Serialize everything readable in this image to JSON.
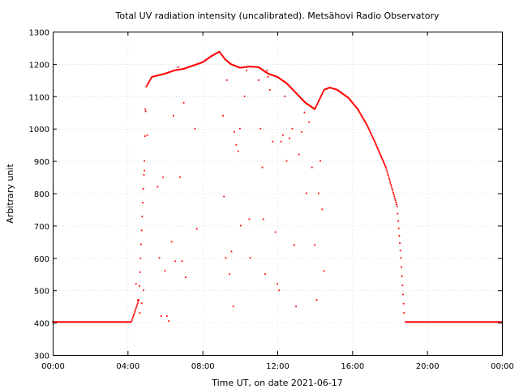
{
  "chart_data": {
    "type": "scatter",
    "title": "Total UV radiation intensity (uncalibrated). Metsähovi Radio Observatory",
    "xlabel": "Time UT, on date 2021-06-17",
    "ylabel": "Arbitrary unit",
    "xlim": [
      0,
      24
    ],
    "ylim": [
      300,
      1300
    ],
    "x_ticks": [
      "00:00",
      "04:00",
      "08:00",
      "12:00",
      "16:00",
      "20:00",
      "00:00"
    ],
    "y_ticks": [
      "300",
      "400",
      "500",
      "600",
      "700",
      "800",
      "900",
      "1000",
      "1100",
      "1200",
      "1300"
    ],
    "grid": true,
    "legend": "none",
    "point_color": "#ff0000",
    "baseline": [
      {
        "x_start": 0.0,
        "x_end": 4.2,
        "y": 402
      },
      {
        "x_start": 18.85,
        "x_end": 24.0,
        "y": 402
      }
    ],
    "envelope": [
      [
        4.2,
        402
      ],
      [
        4.6,
        470
      ],
      [
        4.9,
        900
      ],
      [
        5.0,
        1130
      ],
      [
        5.3,
        1160
      ],
      [
        6.0,
        1170
      ],
      [
        6.5,
        1180
      ],
      [
        7.0,
        1185
      ],
      [
        7.5,
        1195
      ],
      [
        8.0,
        1205
      ],
      [
        8.5,
        1225
      ],
      [
        8.9,
        1238
      ],
      [
        9.2,
        1215
      ],
      [
        9.5,
        1200
      ],
      [
        10.0,
        1188
      ],
      [
        10.5,
        1192
      ],
      [
        11.0,
        1190
      ],
      [
        11.5,
        1170
      ],
      [
        12.0,
        1160
      ],
      [
        12.5,
        1140
      ],
      [
        13.0,
        1110
      ],
      [
        13.5,
        1080
      ],
      [
        14.0,
        1060
      ],
      [
        14.5,
        1120
      ],
      [
        14.8,
        1127
      ],
      [
        15.2,
        1120
      ],
      [
        15.8,
        1095
      ],
      [
        16.3,
        1060
      ],
      [
        16.8,
        1010
      ],
      [
        17.2,
        960
      ],
      [
        17.5,
        920
      ],
      [
        17.8,
        880
      ],
      [
        18.1,
        820
      ],
      [
        18.4,
        760
      ],
      [
        18.6,
        600
      ],
      [
        18.8,
        402
      ]
    ],
    "points": [
      [
        4.45,
        520
      ],
      [
        4.55,
        470
      ],
      [
        4.65,
        430
      ],
      [
        4.75,
        460
      ],
      [
        4.85,
        500
      ],
      [
        4.9,
        870
      ],
      [
        4.95,
        1060
      ],
      [
        5.05,
        980
      ],
      [
        5.6,
        820
      ],
      [
        5.7,
        600
      ],
      [
        5.8,
        420
      ],
      [
        5.9,
        850
      ],
      [
        6.0,
        560
      ],
      [
        6.1,
        420
      ],
      [
        6.2,
        405
      ],
      [
        6.35,
        650
      ],
      [
        6.45,
        1040
      ],
      [
        6.55,
        590
      ],
      [
        6.7,
        1190
      ],
      [
        6.8,
        850
      ],
      [
        6.9,
        590
      ],
      [
        7.0,
        1080
      ],
      [
        7.1,
        540
      ],
      [
        7.6,
        1000
      ],
      [
        7.7,
        690
      ],
      [
        9.1,
        1040
      ],
      [
        9.15,
        790
      ],
      [
        9.25,
        600
      ],
      [
        9.3,
        1150
      ],
      [
        9.45,
        550
      ],
      [
        9.55,
        620
      ],
      [
        9.65,
        450
      ],
      [
        9.7,
        990
      ],
      [
        9.8,
        950
      ],
      [
        9.9,
        930
      ],
      [
        10.0,
        1000
      ],
      [
        10.05,
        700
      ],
      [
        10.25,
        1100
      ],
      [
        10.35,
        1180
      ],
      [
        10.5,
        720
      ],
      [
        10.55,
        600
      ],
      [
        11.0,
        1150
      ],
      [
        11.1,
        1000
      ],
      [
        11.2,
        880
      ],
      [
        11.25,
        720
      ],
      [
        11.35,
        550
      ],
      [
        11.45,
        1180
      ],
      [
        11.5,
        1160
      ],
      [
        11.6,
        1120
      ],
      [
        11.75,
        960
      ],
      [
        11.9,
        680
      ],
      [
        12.0,
        520
      ],
      [
        12.1,
        500
      ],
      [
        12.2,
        960
      ],
      [
        12.3,
        980
      ],
      [
        12.4,
        1100
      ],
      [
        12.5,
        900
      ],
      [
        12.65,
        970
      ],
      [
        12.8,
        1000
      ],
      [
        12.9,
        640
      ],
      [
        13.0,
        450
      ],
      [
        13.15,
        920
      ],
      [
        13.3,
        990
      ],
      [
        13.45,
        1050
      ],
      [
        13.55,
        800
      ],
      [
        13.7,
        1020
      ],
      [
        13.85,
        880
      ],
      [
        14.0,
        640
      ],
      [
        14.1,
        470
      ],
      [
        14.2,
        800
      ],
      [
        14.3,
        900
      ],
      [
        14.4,
        750
      ],
      [
        14.5,
        560
      ]
    ]
  }
}
